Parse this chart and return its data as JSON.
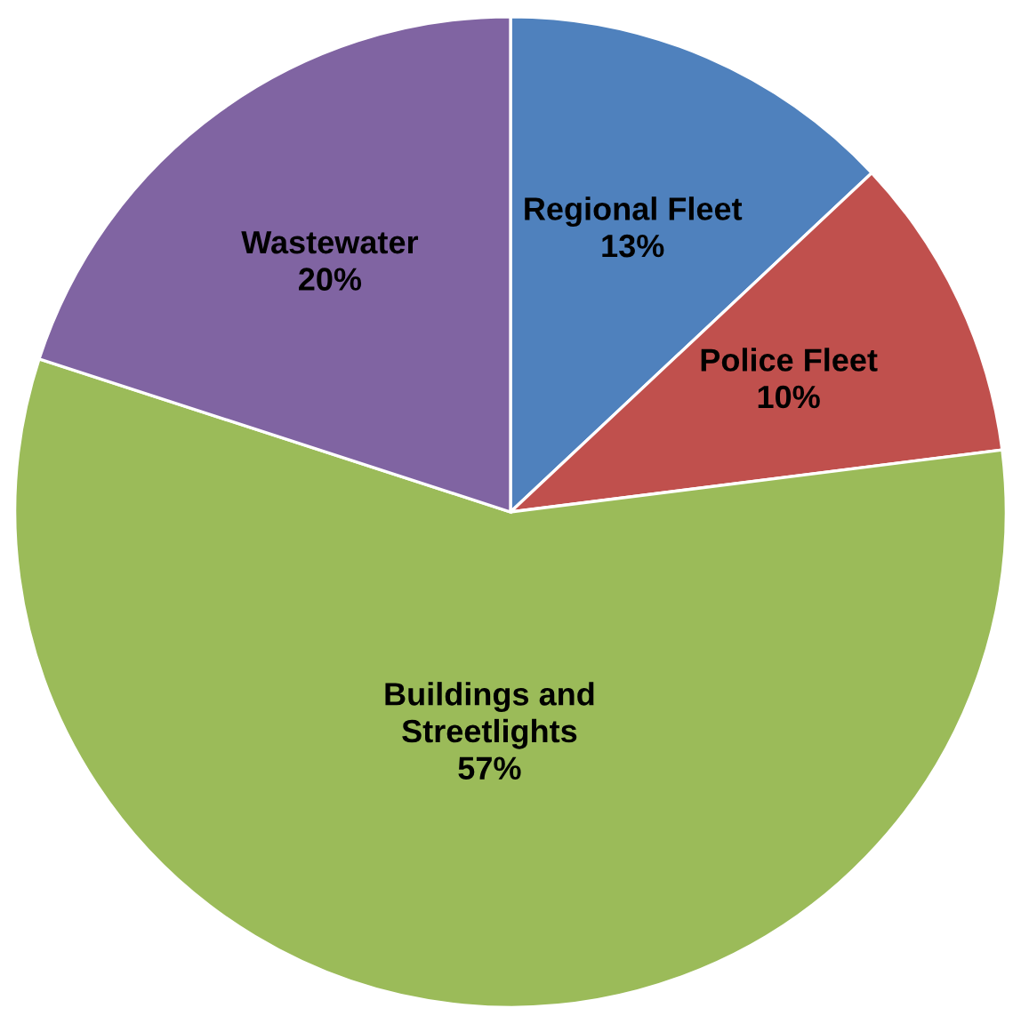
{
  "chart_data": {
    "type": "pie",
    "categories": [
      "Regional Fleet",
      "Police Fleet",
      "Buildings and\nStreetlights",
      "Wastewater"
    ],
    "values": [
      13,
      10,
      57,
      20
    ],
    "value_labels": [
      "13%",
      "10%",
      "57%",
      "20%"
    ],
    "colors": [
      "#4f81bd",
      "#c0504d",
      "#9bbb59",
      "#8064a2"
    ],
    "legend": false
  }
}
